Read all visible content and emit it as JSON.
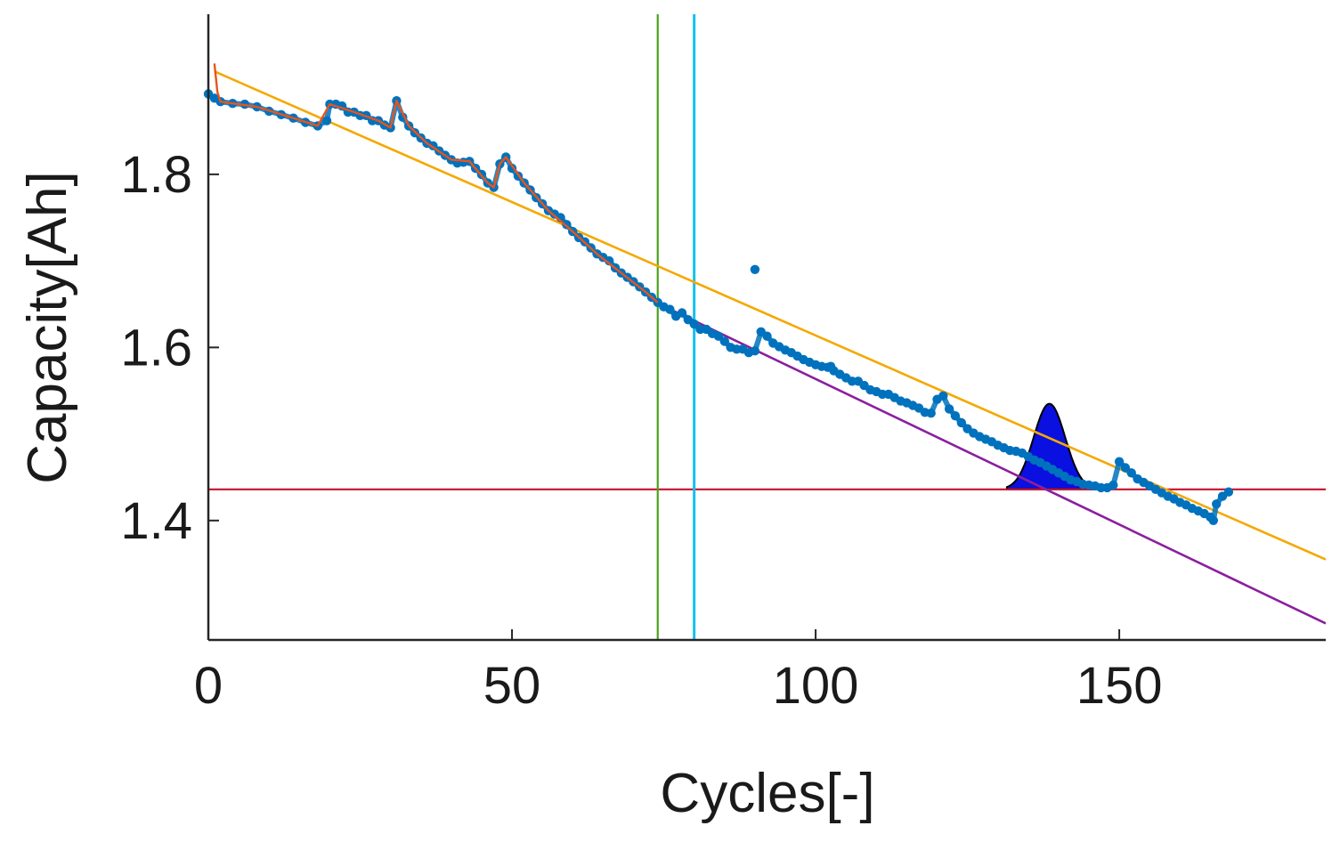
{
  "chart_data": {
    "type": "scatter",
    "title": "",
    "xlabel": "Cycles[-]",
    "ylabel": "Capacity[Ah]",
    "xlim": [
      0,
      184
    ],
    "ylim": [
      1.262,
      1.985
    ],
    "xticks": [
      0,
      50,
      100,
      150
    ],
    "yticks": [
      1.4,
      1.6,
      1.8
    ],
    "xtick_labels": [
      "0",
      "50",
      "100",
      "150"
    ],
    "ytick_labels": [
      "1.4",
      "1.6",
      "1.8"
    ],
    "grid": false,
    "colors": {
      "measured": "#0072bd",
      "filtered": "#e8541c",
      "linear_fit": "#f5a800",
      "prediction": "#8b1f9e",
      "threshold": "#c8102e",
      "train_end": "#4aa31a",
      "predict_start": "#12c0f0",
      "rul_pdf": "#0a10e0"
    },
    "series": [
      {
        "name": "measured capacity",
        "kind": "points",
        "points": [
          [
            0,
            1.893
          ],
          [
            1,
            1.888
          ],
          [
            2,
            1.884
          ],
          [
            4,
            1.882
          ],
          [
            6,
            1.881
          ],
          [
            8,
            1.878
          ],
          [
            10,
            1.873
          ],
          [
            12,
            1.869
          ],
          [
            14,
            1.865
          ],
          [
            16,
            1.86
          ],
          [
            18,
            1.856
          ],
          [
            19.5,
            1.862
          ],
          [
            20,
            1.881
          ],
          [
            21,
            1.881
          ],
          [
            22,
            1.879
          ],
          [
            23,
            1.872
          ],
          [
            24,
            1.872
          ],
          [
            25,
            1.868
          ],
          [
            26,
            1.868
          ],
          [
            27,
            1.862
          ],
          [
            28,
            1.862
          ],
          [
            29,
            1.857
          ],
          [
            30,
            1.854
          ],
          [
            31,
            1.885
          ],
          [
            32,
            1.866
          ],
          [
            33,
            1.856
          ],
          [
            34,
            1.848
          ],
          [
            35,
            1.842
          ],
          [
            36,
            1.836
          ],
          [
            37,
            1.833
          ],
          [
            38,
            1.827
          ],
          [
            39,
            1.822
          ],
          [
            40,
            1.817
          ],
          [
            41,
            1.813
          ],
          [
            42,
            1.814
          ],
          [
            43,
            1.815
          ],
          [
            44,
            1.807
          ],
          [
            45,
            1.8
          ],
          [
            46,
            1.79
          ],
          [
            47,
            1.785
          ],
          [
            48,
            1.812
          ],
          [
            49,
            1.82
          ],
          [
            50,
            1.807
          ],
          [
            51,
            1.798
          ],
          [
            52,
            1.79
          ],
          [
            53,
            1.782
          ],
          [
            54,
            1.773
          ],
          [
            55,
            1.766
          ],
          [
            56,
            1.758
          ],
          [
            57,
            1.754
          ],
          [
            58,
            1.75
          ],
          [
            59,
            1.742
          ],
          [
            60,
            1.734
          ],
          [
            61,
            1.727
          ],
          [
            62,
            1.722
          ],
          [
            63,
            1.715
          ],
          [
            64,
            1.708
          ],
          [
            65,
            1.704
          ],
          [
            66,
            1.7
          ],
          [
            67,
            1.692
          ],
          [
            68,
            1.686
          ],
          [
            69,
            1.681
          ],
          [
            70,
            1.676
          ],
          [
            71,
            1.67
          ],
          [
            72,
            1.664
          ],
          [
            73,
            1.658
          ],
          [
            74,
            1.652
          ],
          [
            75,
            1.647
          ],
          [
            76,
            1.644
          ],
          [
            77,
            1.636
          ],
          [
            78,
            1.64
          ],
          [
            79,
            1.632
          ],
          [
            80,
            1.627
          ],
          [
            81,
            1.621
          ],
          [
            82,
            1.621
          ],
          [
            83,
            1.616
          ],
          [
            84,
            1.613
          ],
          [
            85,
            1.607
          ],
          [
            86,
            1.6
          ],
          [
            87,
            1.598
          ],
          [
            88,
            1.598
          ],
          [
            89,
            1.594
          ],
          [
            90,
            1.596
          ],
          [
            90,
            1.69
          ],
          [
            91,
            1.618
          ],
          [
            92,
            1.613
          ],
          [
            93,
            1.605
          ],
          [
            94,
            1.601
          ],
          [
            95,
            1.597
          ],
          [
            96,
            1.594
          ],
          [
            97,
            1.59
          ],
          [
            98,
            1.586
          ],
          [
            99,
            1.583
          ],
          [
            100,
            1.58
          ],
          [
            101,
            1.578
          ],
          [
            102,
            1.577
          ],
          [
            102.5,
            1.578
          ],
          [
            103,
            1.573
          ],
          [
            104,
            1.569
          ],
          [
            105,
            1.565
          ],
          [
            106,
            1.561
          ],
          [
            107,
            1.561
          ],
          [
            108,
            1.556
          ],
          [
            109,
            1.551
          ],
          [
            110,
            1.549
          ],
          [
            111,
            1.546
          ],
          [
            112,
            1.546
          ],
          [
            113,
            1.542
          ],
          [
            114,
            1.538
          ],
          [
            115,
            1.536
          ],
          [
            116,
            1.533
          ],
          [
            117,
            1.53
          ],
          [
            118,
            1.525
          ],
          [
            119,
            1.524
          ],
          [
            120,
            1.54
          ],
          [
            121,
            1.544
          ],
          [
            122,
            1.529
          ],
          [
            123,
            1.521
          ],
          [
            124,
            1.513
          ],
          [
            125,
            1.506
          ],
          [
            126,
            1.501
          ],
          [
            127,
            1.497
          ],
          [
            128,
            1.494
          ],
          [
            129,
            1.491
          ],
          [
            130,
            1.487
          ],
          [
            131,
            1.484
          ],
          [
            132,
            1.481
          ],
          [
            133,
            1.48
          ],
          [
            134,
            1.478
          ],
          [
            135,
            1.474
          ],
          [
            136,
            1.47
          ],
          [
            137,
            1.467
          ],
          [
            138,
            1.463
          ],
          [
            139,
            1.459
          ],
          [
            140,
            1.455
          ],
          [
            141,
            1.451
          ],
          [
            142,
            1.447
          ],
          [
            143,
            1.445
          ],
          [
            144,
            1.442
          ],
          [
            145,
            1.441
          ],
          [
            146,
            1.44
          ],
          [
            147,
            1.438
          ],
          [
            148,
            1.438
          ],
          [
            149,
            1.441
          ],
          [
            150,
            1.468
          ],
          [
            151,
            1.461
          ],
          [
            152,
            1.455
          ],
          [
            153,
            1.448
          ],
          [
            154,
            1.444
          ],
          [
            155,
            1.44
          ],
          [
            156,
            1.436
          ],
          [
            157,
            1.432
          ],
          [
            158,
            1.428
          ],
          [
            159,
            1.425
          ],
          [
            160,
            1.421
          ],
          [
            161,
            1.418
          ],
          [
            162,
            1.414
          ],
          [
            163,
            1.411
          ],
          [
            164,
            1.408
          ],
          [
            165,
            1.404
          ],
          [
            165.5,
            1.4
          ],
          [
            166,
            1.419
          ],
          [
            167,
            1.428
          ],
          [
            168,
            1.433
          ]
        ]
      },
      {
        "name": "filtered capacity",
        "kind": "line",
        "points": [
          [
            1,
            1.928
          ],
          [
            1.5,
            1.895
          ],
          [
            2,
            1.884
          ],
          [
            8,
            1.878
          ],
          [
            14,
            1.865
          ],
          [
            18,
            1.856
          ],
          [
            20,
            1.881
          ],
          [
            24,
            1.872
          ],
          [
            28,
            1.862
          ],
          [
            30,
            1.854
          ],
          [
            31,
            1.885
          ],
          [
            33,
            1.856
          ],
          [
            36,
            1.836
          ],
          [
            40,
            1.817
          ],
          [
            43,
            1.815
          ],
          [
            46,
            1.79
          ],
          [
            47,
            1.785
          ],
          [
            48,
            1.812
          ],
          [
            49,
            1.82
          ],
          [
            52,
            1.79
          ],
          [
            56,
            1.758
          ],
          [
            60,
            1.734
          ],
          [
            64,
            1.708
          ],
          [
            68,
            1.686
          ],
          [
            72,
            1.664
          ],
          [
            74,
            1.652
          ]
        ]
      },
      {
        "name": "linear trend",
        "kind": "line",
        "points": [
          [
            1,
            1.919
          ],
          [
            184,
            1.355
          ]
        ]
      },
      {
        "name": "predicted degradation",
        "kind": "line",
        "points": [
          [
            74,
            1.651
          ],
          [
            184,
            1.281
          ]
        ]
      }
    ],
    "reference_lines": [
      {
        "name": "failure threshold",
        "orientation": "horizontal",
        "value": 1.436
      },
      {
        "name": "training end",
        "orientation": "vertical",
        "value": 74
      },
      {
        "name": "prediction start",
        "orientation": "vertical",
        "value": 80
      }
    ],
    "rul_distribution": {
      "name": "RUL probability density",
      "center": 138.5,
      "sigma": 2.6,
      "range": [
        131.5,
        146
      ],
      "baseline": 1.436,
      "peak": 1.535
    }
  }
}
